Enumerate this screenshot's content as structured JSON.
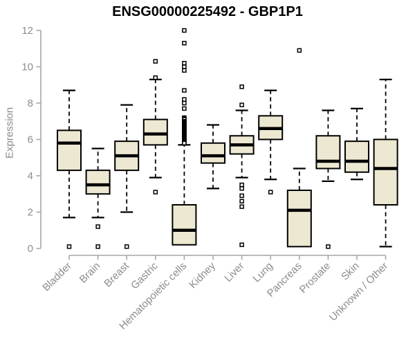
{
  "colors": {
    "background": "#ffffff",
    "box_fill": "#ede8d1",
    "box_stroke": "#000000",
    "median_stroke": "#000000",
    "whisker_stroke": "#000000",
    "outlier_stroke": "#000000",
    "outlier_fill": "#ffffff",
    "axis_line": "#a6a6a6",
    "tick_text": "#8c8c8c",
    "title_text": "#000000"
  },
  "chart_data": {
    "type": "boxplot",
    "title": "ENSG00000225492 - GBP1P1",
    "xlabel": "",
    "ylabel": "Expression",
    "ylim": [
      0,
      12
    ],
    "yticks": [
      0,
      2,
      4,
      6,
      8,
      10,
      12
    ],
    "grid": false,
    "legend": "none",
    "categories": [
      "Bladder",
      "Brain",
      "Breast",
      "Gastric",
      "Hematopoietic cells",
      "Kidney",
      "Liver",
      "Lung",
      "Pancreas",
      "Prostate",
      "Skin",
      "Unknown / Other"
    ],
    "boxes": [
      {
        "label": "Bladder",
        "whislo": 1.7,
        "q1": 4.3,
        "med": 5.8,
        "q3": 6.5,
        "whishi": 8.7,
        "outliers": [
          0.1
        ]
      },
      {
        "label": "Brain",
        "whislo": 1.7,
        "q1": 3.0,
        "med": 3.5,
        "q3": 4.3,
        "whishi": 5.5,
        "outliers": [
          1.2,
          0.1
        ]
      },
      {
        "label": "Breast",
        "whislo": 2.0,
        "q1": 4.3,
        "med": 5.1,
        "q3": 5.9,
        "whishi": 7.9,
        "outliers": [
          0.1
        ]
      },
      {
        "label": "Gastric",
        "whislo": 3.9,
        "q1": 5.7,
        "med": 6.3,
        "q3": 7.1,
        "whishi": 9.3,
        "outliers": [
          10.3,
          9.4,
          3.1
        ]
      },
      {
        "label": "Hematopoietic cells",
        "whislo": 0.2,
        "q1": 0.2,
        "med": 1.0,
        "q3": 2.4,
        "whishi": 5.7,
        "outliers": [
          12.0,
          11.3,
          10.2,
          10.0,
          9.8,
          8.7,
          8.2,
          8.0,
          7.7,
          7.2,
          7.15,
          7.1,
          7.0,
          6.95,
          6.9,
          6.85,
          6.8,
          6.75,
          6.7,
          6.65,
          6.6,
          6.55,
          6.5,
          6.45,
          6.4,
          6.35,
          6.3,
          6.25,
          6.2,
          6.15,
          6.1,
          6.05,
          6.0,
          5.95,
          5.9,
          5.85,
          5.8
        ]
      },
      {
        "label": "Kidney",
        "whislo": 3.3,
        "q1": 4.7,
        "med": 5.1,
        "q3": 5.8,
        "whishi": 6.8,
        "outliers": []
      },
      {
        "label": "Liver",
        "whislo": 3.9,
        "q1": 5.2,
        "med": 5.7,
        "q3": 6.2,
        "whishi": 7.6,
        "outliers": [
          8.9,
          7.9,
          3.5,
          3.3,
          2.9,
          2.6,
          2.3,
          0.2
        ]
      },
      {
        "label": "Lung",
        "whislo": 3.8,
        "q1": 6.0,
        "med": 6.6,
        "q3": 7.3,
        "whishi": 8.7,
        "outliers": [
          3.1
        ]
      },
      {
        "label": "Pancreas",
        "whislo": 0.1,
        "q1": 0.1,
        "med": 2.1,
        "q3": 3.2,
        "whishi": 4.4,
        "outliers": [
          10.9
        ]
      },
      {
        "label": "Prostate",
        "whislo": 3.7,
        "q1": 4.4,
        "med": 4.8,
        "q3": 6.2,
        "whishi": 7.6,
        "outliers": [
          0.1
        ]
      },
      {
        "label": "Skin",
        "whislo": 3.8,
        "q1": 4.2,
        "med": 4.8,
        "q3": 5.9,
        "whishi": 7.7,
        "outliers": []
      },
      {
        "label": "Unknown / Other",
        "whislo": 0.1,
        "q1": 2.4,
        "med": 4.4,
        "q3": 6.0,
        "whishi": 9.3,
        "outliers": []
      }
    ]
  }
}
